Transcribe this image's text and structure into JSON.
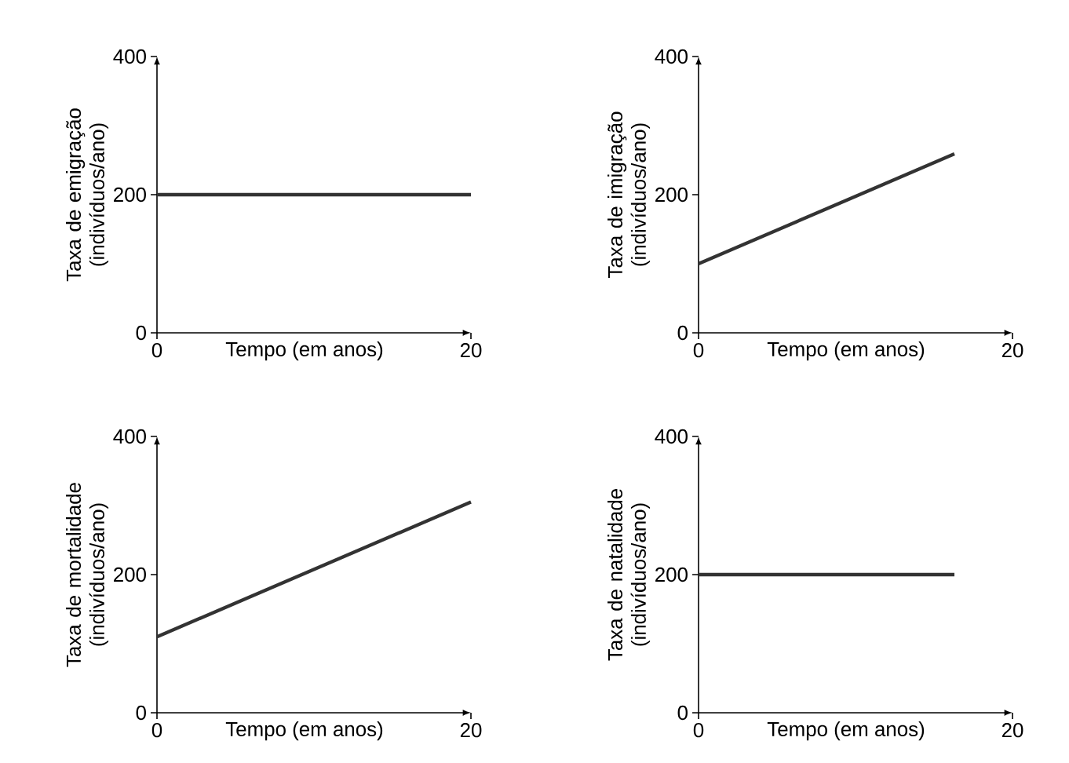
{
  "chart_data": [
    {
      "type": "line",
      "xlabel": "Tempo (em anos)",
      "ylabel": "Taxa de emigração (indivíduos/ano)",
      "xlim": [
        0,
        20
      ],
      "ylim": [
        0,
        400
      ],
      "xticks": [
        0,
        20
      ],
      "yticks": [
        0,
        200,
        400
      ],
      "series": [
        {
          "color": "#333333",
          "x": [
            0,
            20
          ],
          "values": [
            200,
            200
          ]
        }
      ]
    },
    {
      "type": "line",
      "xlabel": "Tempo (em anos)",
      "ylabel": "Taxa de imigração (indivíduos/ano)",
      "xlim": [
        0,
        20
      ],
      "ylim": [
        0,
        400
      ],
      "xticks": [
        0,
        20
      ],
      "yticks": [
        0,
        200,
        400
      ],
      "series": [
        {
          "color": "#333333",
          "x": [
            0,
            16.3
          ],
          "values": [
            100,
            259
          ]
        }
      ]
    },
    {
      "type": "line",
      "xlabel": "Tempo (em anos)",
      "ylabel": "Taxa de mortalidade (indivíduos/ano)",
      "xlim": [
        0,
        20
      ],
      "ylim": [
        0,
        400
      ],
      "xticks": [
        0,
        20
      ],
      "yticks": [
        0,
        200,
        400
      ],
      "series": [
        {
          "color": "#333333",
          "x": [
            0,
            20
          ],
          "values": [
            110,
            305
          ]
        }
      ]
    },
    {
      "type": "line",
      "xlabel": "Tempo (em anos)",
      "ylabel": "Taxa de natalidade (indivíduos/ano)",
      "xlim": [
        0,
        20
      ],
      "ylim": [
        0,
        400
      ],
      "xticks": [
        0,
        20
      ],
      "yticks": [
        0,
        200,
        400
      ],
      "series": [
        {
          "color": "#333333",
          "x": [
            0,
            16.3
          ],
          "values": [
            200,
            200
          ]
        }
      ]
    }
  ]
}
